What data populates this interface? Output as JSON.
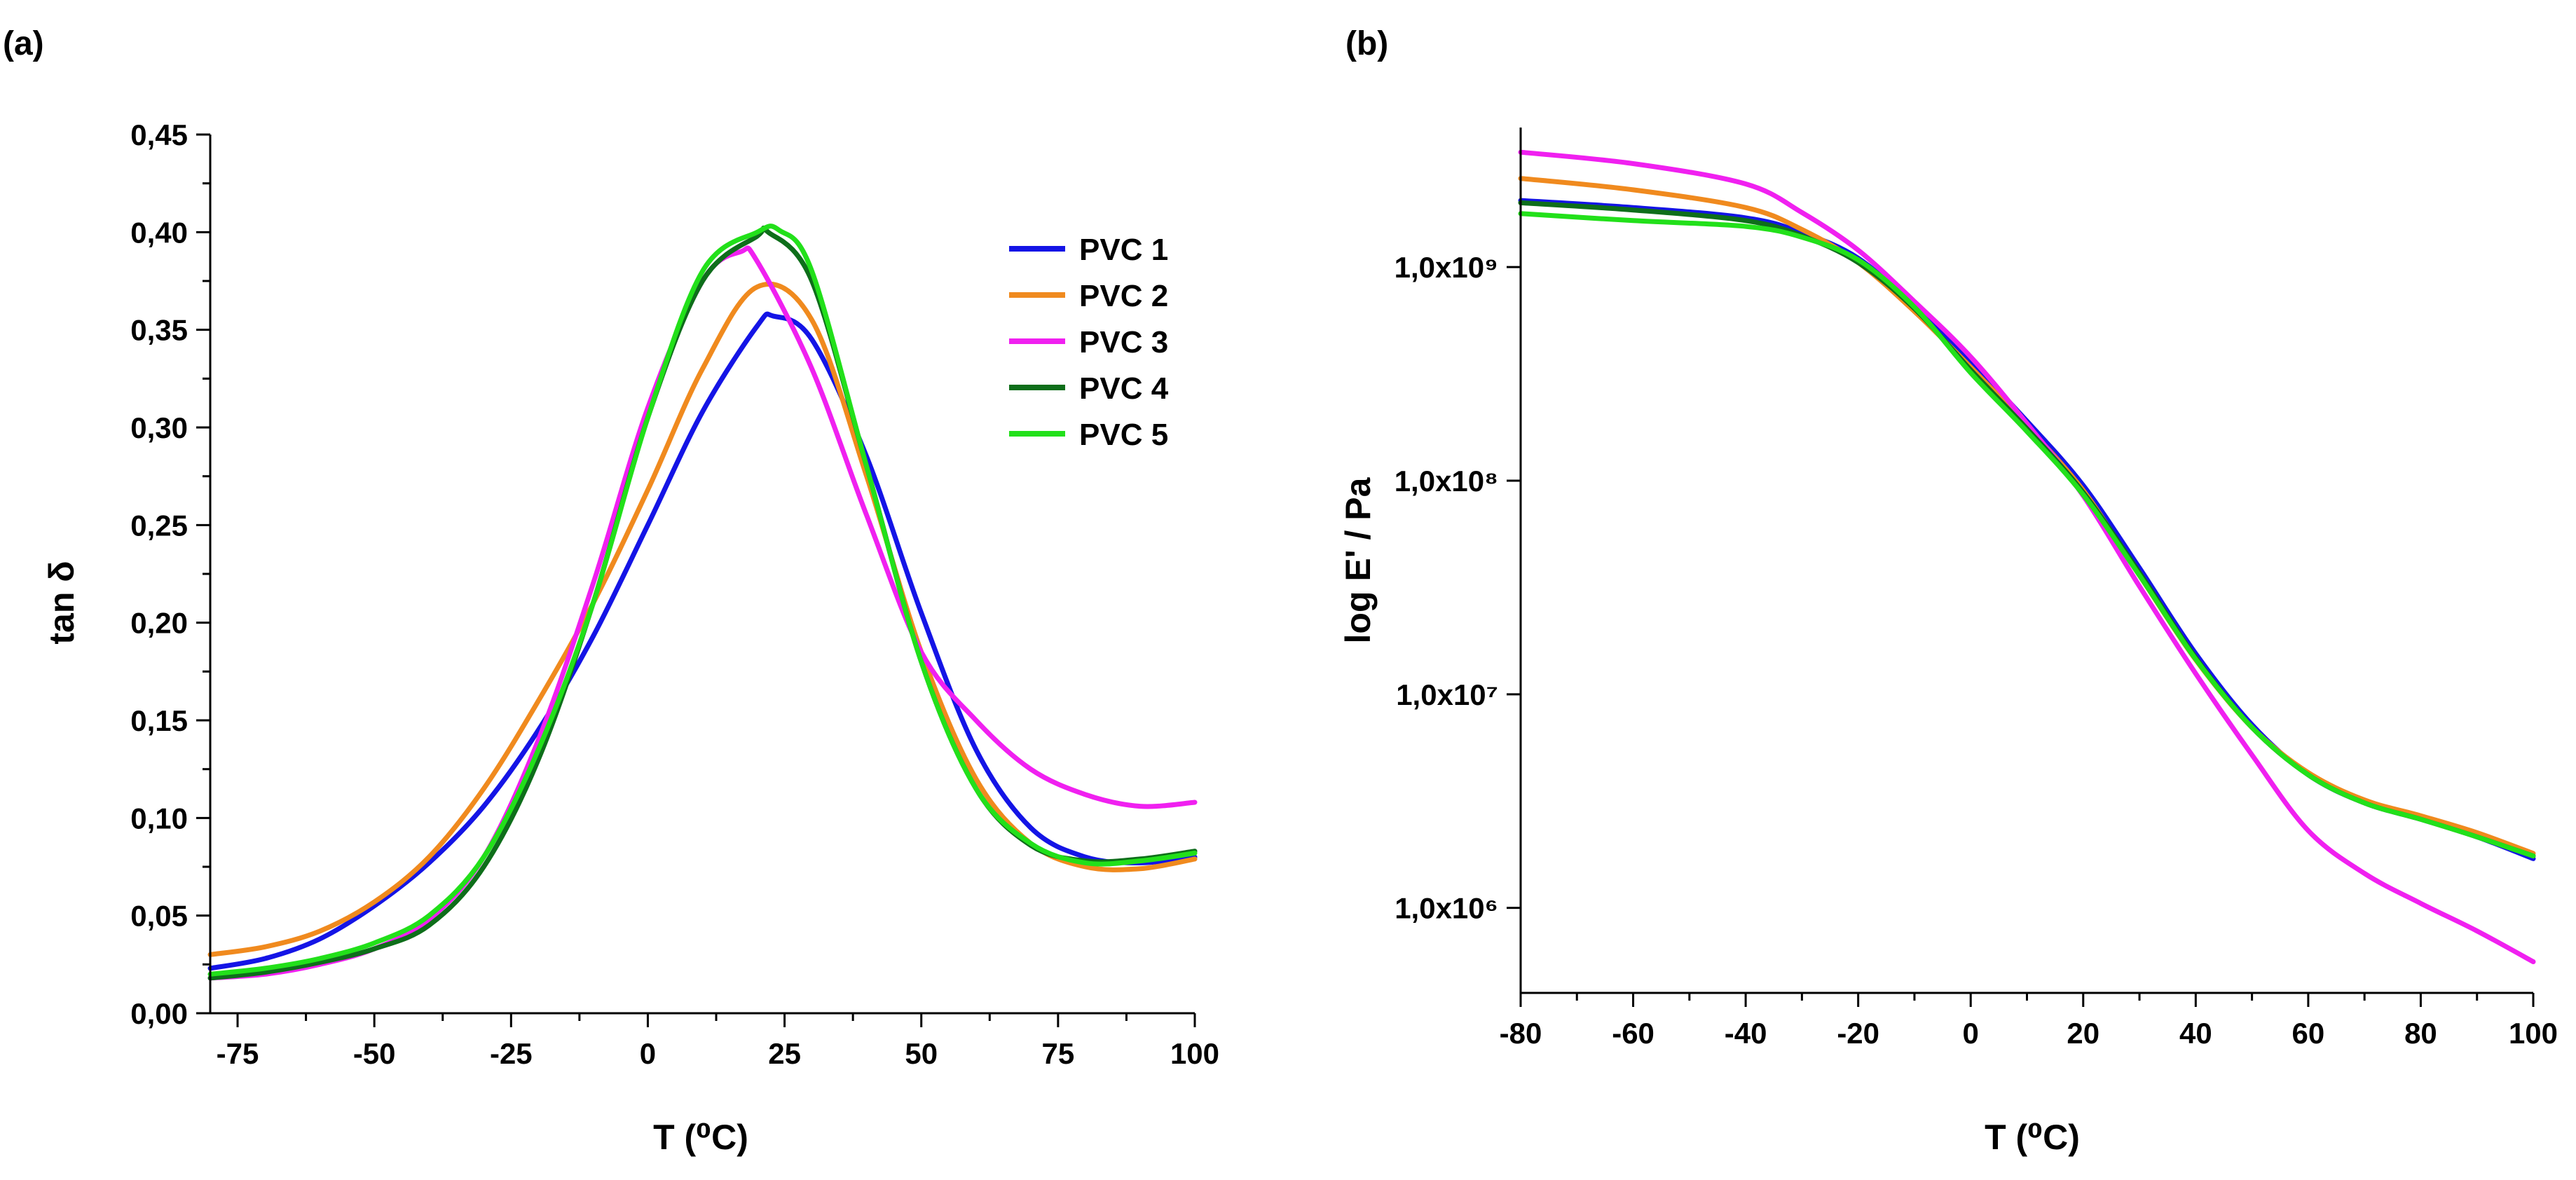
{
  "panels": [
    {
      "label": "(a)"
    },
    {
      "label": "(b)"
    }
  ],
  "chart_data": [
    {
      "type": "line",
      "panel_label": "(a)",
      "title": "",
      "xlabel": "T (⁰C)",
      "ylabel": "tan δ",
      "xlim": [
        -80,
        100
      ],
      "ylim": [
        0.0,
        0.45
      ],
      "xticks": [
        -75,
        -50,
        -25,
        0,
        25,
        50,
        75,
        100
      ],
      "xtick_labels": [
        "-75",
        "-50",
        "-25",
        "0",
        "25",
        "50",
        "75",
        "100"
      ],
      "yticks": [
        0.0,
        0.05,
        0.1,
        0.15,
        0.2,
        0.25,
        0.3,
        0.35,
        0.4,
        0.45
      ],
      "ytick_labels": [
        "0,00",
        "0,05",
        "0,10",
        "0,15",
        "0,20",
        "0,25",
        "0,30",
        "0,35",
        "0,40",
        "0,45"
      ],
      "legend_position": "top-right",
      "series": [
        {
          "name": "PVC 1",
          "color": "#1414e6",
          "x": [
            -80,
            -70,
            -60,
            -50,
            -40,
            -30,
            -20,
            -10,
            0,
            10,
            20,
            23,
            30,
            40,
            50,
            60,
            70,
            80,
            90,
            100
          ],
          "y": [
            0.023,
            0.028,
            0.038,
            0.055,
            0.077,
            0.106,
            0.145,
            0.193,
            0.25,
            0.308,
            0.352,
            0.357,
            0.345,
            0.285,
            0.205,
            0.135,
            0.095,
            0.08,
            0.077,
            0.08
          ]
        },
        {
          "name": "PVC 2",
          "color": "#f08a1e",
          "x": [
            -80,
            -70,
            -60,
            -50,
            -40,
            -30,
            -20,
            -10,
            0,
            10,
            20,
            30,
            40,
            50,
            60,
            70,
            80,
            90,
            100
          ],
          "y": [
            0.03,
            0.034,
            0.042,
            0.057,
            0.08,
            0.115,
            0.16,
            0.21,
            0.268,
            0.33,
            0.372,
            0.355,
            0.275,
            0.185,
            0.12,
            0.087,
            0.075,
            0.074,
            0.079
          ]
        },
        {
          "name": "PVC 3",
          "color": "#f020f0",
          "x": [
            -80,
            -70,
            -60,
            -50,
            -40,
            -30,
            -20,
            -10,
            0,
            10,
            17,
            20,
            30,
            40,
            50,
            60,
            70,
            80,
            90,
            100
          ],
          "y": [
            0.018,
            0.02,
            0.025,
            0.033,
            0.048,
            0.08,
            0.14,
            0.22,
            0.31,
            0.375,
            0.39,
            0.385,
            0.33,
            0.255,
            0.185,
            0.15,
            0.125,
            0.112,
            0.106,
            0.108
          ]
        },
        {
          "name": "PVC 4",
          "color": "#0e6e1a",
          "x": [
            -80,
            -70,
            -60,
            -50,
            -40,
            -30,
            -20,
            -10,
            0,
            10,
            20,
            22,
            30,
            40,
            50,
            60,
            70,
            80,
            90,
            100
          ],
          "y": [
            0.018,
            0.021,
            0.026,
            0.033,
            0.045,
            0.075,
            0.13,
            0.21,
            0.305,
            0.375,
            0.398,
            0.4,
            0.375,
            0.28,
            0.18,
            0.115,
            0.086,
            0.078,
            0.079,
            0.083
          ]
        },
        {
          "name": "PVC 5",
          "color": "#22e01a",
          "x": [
            -80,
            -70,
            -60,
            -50,
            -40,
            -30,
            -20,
            -10,
            0,
            10,
            20,
            24,
            30,
            40,
            50,
            60,
            70,
            80,
            90,
            100
          ],
          "y": [
            0.02,
            0.023,
            0.028,
            0.036,
            0.05,
            0.08,
            0.135,
            0.21,
            0.305,
            0.38,
            0.4,
            0.401,
            0.38,
            0.28,
            0.18,
            0.115,
            0.087,
            0.077,
            0.078,
            0.082
          ]
        }
      ]
    },
    {
      "type": "line",
      "panel_label": "(b)",
      "title": "",
      "xlabel": "T (⁰C)",
      "ylabel": "log E' / Pa",
      "y_scale": "log",
      "xlim": [
        -80,
        100
      ],
      "ylim": [
        400000,
        4500000000
      ],
      "xticks": [
        -80,
        -60,
        -40,
        -20,
        0,
        20,
        40,
        60,
        80,
        100
      ],
      "xtick_labels": [
        "-80",
        "-60",
        "-40",
        "-20",
        "0",
        "20",
        "40",
        "60",
        "80",
        "100"
      ],
      "yticks": [
        1000000,
        10000000,
        100000000,
        1000000000
      ],
      "ytick_labels": [
        "1,0x10⁶",
        "1,0x10⁷",
        "1,0x10⁸",
        "1,0x10⁹"
      ],
      "legend": "none",
      "series": [
        {
          "color": "#1414e6",
          "x": [
            -80,
            -60,
            -40,
            -30,
            -20,
            -10,
            0,
            10,
            20,
            30,
            40,
            50,
            60,
            70,
            80,
            90,
            100
          ],
          "y": [
            2050000000,
            1900000000,
            1700000000,
            1450000000,
            1100000000,
            650000000,
            360000000,
            190000000,
            95000000,
            39000000,
            15500000,
            7200000,
            4200000,
            3100000,
            2600000,
            2150000,
            1700000
          ]
        },
        {
          "color": "#f08a1e",
          "x": [
            -80,
            -60,
            -40,
            -30,
            -20,
            -10,
            0,
            10,
            20,
            30,
            40,
            50,
            60,
            70,
            80,
            90,
            100
          ],
          "y": [
            2600000000,
            2300000000,
            1900000000,
            1500000000,
            1050000000,
            620000000,
            340000000,
            180000000,
            90000000,
            36000000,
            14500000,
            7000000,
            4300000,
            3200000,
            2700000,
            2250000,
            1800000
          ]
        },
        {
          "color": "#f020f0",
          "x": [
            -80,
            -60,
            -40,
            -30,
            -20,
            -10,
            0,
            10,
            20,
            30,
            40,
            50,
            60,
            70,
            80,
            90,
            100
          ],
          "y": [
            3450000000,
            3050000000,
            2450000000,
            1800000000,
            1200000000,
            690000000,
            380000000,
            185000000,
            85000000,
            32000000,
            12500000,
            5200000,
            2300000,
            1450000,
            1050000,
            780000,
            560000
          ]
        },
        {
          "color": "#0e6e1a",
          "x": [
            -80,
            -60,
            -40,
            -30,
            -20,
            -10,
            0,
            10,
            20,
            30,
            40,
            50,
            60,
            70,
            80,
            90,
            100
          ],
          "y": [
            2000000000,
            1850000000,
            1650000000,
            1400000000,
            1050000000,
            640000000,
            330000000,
            175000000,
            88000000,
            37000000,
            14800000,
            7000000,
            4200000,
            3100000,
            2600000,
            2150000,
            1750000
          ]
        },
        {
          "color": "#22e01a",
          "x": [
            -80,
            -60,
            -40,
            -30,
            -20,
            -10,
            0,
            10,
            20,
            30,
            40,
            50,
            60,
            70,
            80,
            90,
            100
          ],
          "y": [
            1780000000,
            1650000000,
            1550000000,
            1380000000,
            1080000000,
            650000000,
            320000000,
            170000000,
            86000000,
            36000000,
            14600000,
            7000000,
            4200000,
            3100000,
            2600000,
            2150000,
            1750000
          ]
        }
      ]
    }
  ]
}
